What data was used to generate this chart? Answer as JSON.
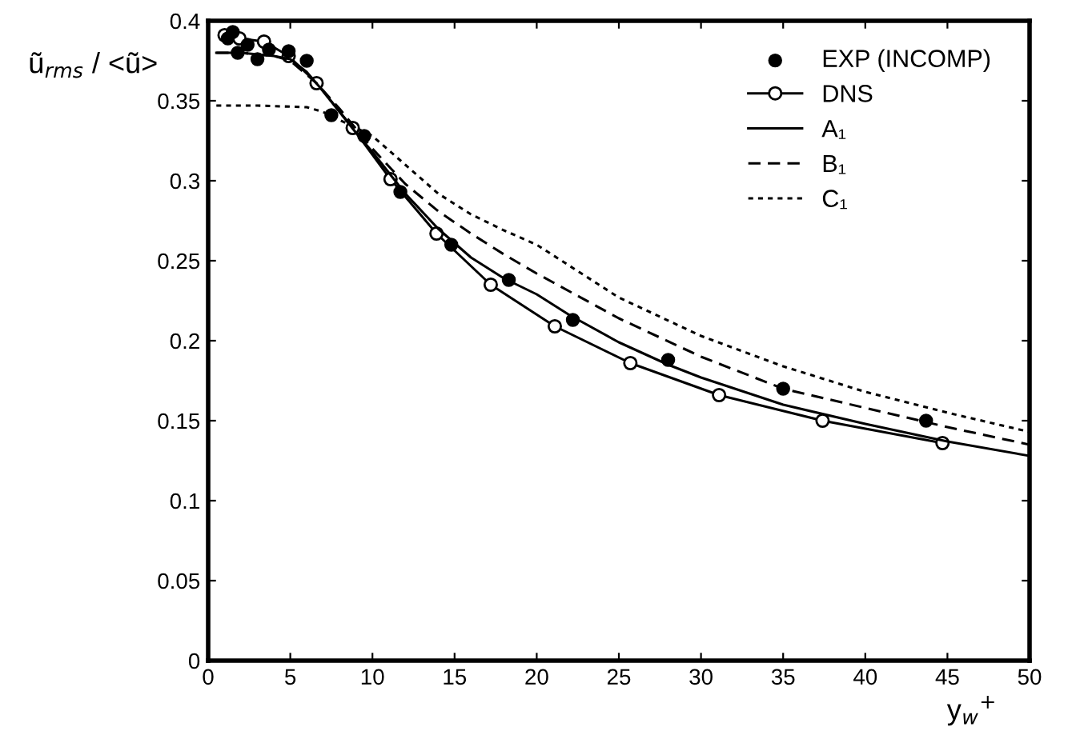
{
  "chart_data": {
    "type": "line",
    "ylabel": "ũ$_{rms}$ / <ũ>",
    "xlabel": "y$_{w}$$^{+}$",
    "xlim": [
      0,
      50
    ],
    "xticks": [
      0,
      5,
      10,
      15,
      20,
      25,
      30,
      35,
      40,
      45,
      50
    ],
    "ylim": [
      0,
      0.4
    ],
    "yticks": [
      0,
      0.05,
      0.1,
      0.15,
      0.2,
      0.25,
      0.3,
      0.35,
      0.4
    ],
    "grid": false,
    "legend": "top right",
    "series": [
      {
        "name": "EXP (INCOMP)",
        "type": "scatter",
        "color": "#000000",
        "marker": "circle",
        "x": [
          1.2,
          1.5,
          1.8,
          2.4,
          3.0,
          3.7,
          4.9,
          6.0,
          7.5,
          9.5,
          11.7,
          14.8,
          18.3,
          22.2,
          28,
          35,
          43.7
        ],
        "values": [
          0.389,
          0.393,
          0.38,
          0.385,
          0.376,
          0.382,
          0.381,
          0.375,
          0.341,
          0.328,
          0.293,
          0.26,
          0.238,
          0.213,
          0.188,
          0.17,
          0.15
        ]
      },
      {
        "name": "DNS",
        "color": "#000000",
        "marker": "circle",
        "line_style": "solid",
        "x": [
          1.0,
          1.9,
          3.4,
          4.9,
          6.6,
          8.8,
          11.1,
          13.9,
          17.2,
          21.1,
          25.7,
          31.1,
          37.4,
          44.7
        ],
        "values": [
          0.391,
          0.389,
          0.387,
          0.378,
          0.361,
          0.333,
          0.301,
          0.267,
          0.235,
          0.209,
          0.186,
          0.166,
          0.15,
          0.136
        ]
      },
      {
        "name": "A₁",
        "color": "#000000",
        "marker": "none",
        "line_style": "solid",
        "x": [
          0.5,
          2,
          4,
          5,
          6,
          7,
          8,
          9,
          10,
          12,
          14,
          16,
          18,
          20,
          22,
          25,
          28,
          30,
          35,
          40,
          45,
          50
        ],
        "values": [
          0.38,
          0.38,
          0.378,
          0.376,
          0.368,
          0.356,
          0.343,
          0.33,
          0.318,
          0.292,
          0.27,
          0.252,
          0.239,
          0.229,
          0.216,
          0.199,
          0.185,
          0.177,
          0.16,
          0.148,
          0.137,
          0.128
        ]
      },
      {
        "name": "B₁",
        "color": "#000000",
        "marker": "none",
        "line_style": "dashed",
        "x": [
          0.5,
          2,
          4,
          5,
          6.6,
          8,
          10,
          12,
          14,
          16,
          18,
          20,
          25,
          30,
          35,
          40,
          45,
          50
        ],
        "values": [
          0.38,
          0.38,
          0.378,
          0.375,
          0.361,
          0.345,
          0.32,
          0.298,
          0.281,
          0.267,
          0.254,
          0.242,
          0.214,
          0.19,
          0.17,
          0.158,
          0.146,
          0.135
        ]
      },
      {
        "name": "C₁",
        "color": "#000000",
        "marker": "none",
        "line_style": "dotted",
        "x": [
          0.5,
          3,
          6,
          7,
          8,
          9,
          10,
          12,
          14,
          16,
          18,
          20,
          25,
          30,
          35,
          40,
          45,
          50
        ],
        "values": [
          0.347,
          0.347,
          0.346,
          0.343,
          0.338,
          0.333,
          0.328,
          0.31,
          0.292,
          0.279,
          0.269,
          0.26,
          0.227,
          0.203,
          0.184,
          0.168,
          0.155,
          0.143
        ]
      }
    ]
  }
}
